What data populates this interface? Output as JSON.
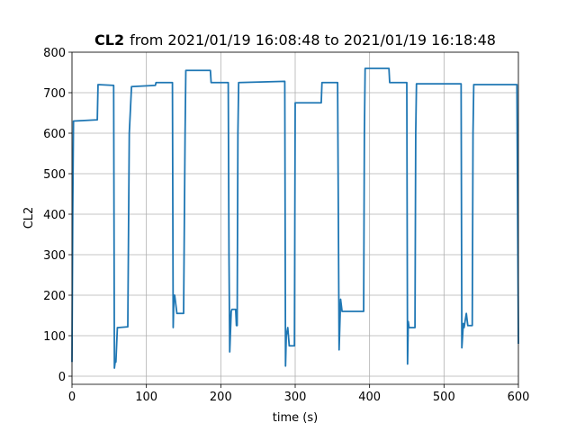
{
  "chart_data": {
    "type": "line",
    "title": "CL2",
    "title_suffix": "from 2021/01/19 16:08:48 to 2021/01/19 16:18:48",
    "x_label": "time (s)",
    "y_label": "CL2",
    "color": "#1f77b4",
    "grid": true,
    "xlim": [
      0,
      600
    ],
    "xticks": [
      0,
      100,
      200,
      300,
      400,
      500,
      600
    ],
    "ylim": [
      -20,
      800
    ],
    "yticks": [
      0,
      100,
      200,
      300,
      400,
      500,
      600,
      700,
      800
    ],
    "x": [
      0,
      1,
      2,
      34,
      35,
      56,
      57,
      58,
      59,
      61,
      62,
      75,
      77,
      80,
      112,
      113,
      135,
      136,
      137,
      138,
      141,
      142,
      150,
      152,
      153,
      186,
      187,
      210,
      211,
      212,
      214,
      215,
      220,
      221,
      222,
      223,
      224,
      286,
      287,
      288,
      290,
      292,
      293,
      299,
      300,
      335,
      336,
      357,
      358,
      359,
      361,
      363,
      365,
      392,
      393,
      394,
      426,
      427,
      450,
      451,
      452,
      453,
      455,
      461,
      462,
      463,
      523,
      524,
      526,
      527,
      530,
      532,
      534,
      538,
      539,
      540,
      598,
      599,
      600
    ],
    "values": [
      35,
      400,
      630,
      633,
      720,
      718,
      20,
      35,
      35,
      120,
      120,
      122,
      600,
      715,
      718,
      725,
      725,
      120,
      200,
      200,
      155,
      155,
      155,
      600,
      755,
      755,
      725,
      725,
      300,
      60,
      160,
      165,
      165,
      125,
      125,
      600,
      725,
      728,
      25,
      100,
      120,
      75,
      75,
      75,
      675,
      675,
      725,
      725,
      400,
      65,
      190,
      160,
      160,
      160,
      600,
      760,
      760,
      725,
      725,
      30,
      135,
      120,
      120,
      120,
      600,
      722,
      722,
      70,
      130,
      120,
      155,
      125,
      125,
      125,
      600,
      720,
      720,
      400,
      80
    ]
  }
}
